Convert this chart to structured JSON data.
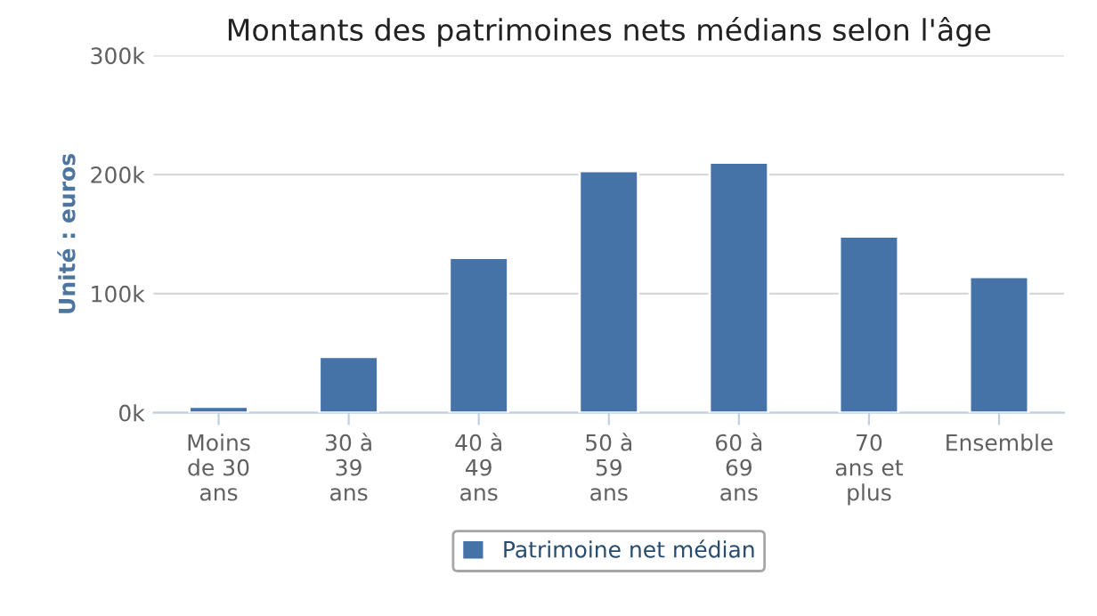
{
  "chart_data": {
    "type": "bar",
    "title": "Montants des patrimoines nets médians selon l'âge",
    "ylabel": "Unité : euros",
    "categories": [
      "Moins\nde 30\nans",
      "30 à\n39\nans",
      "40 à\n49\nans",
      "50 à\n59\nans",
      "60 à\n69\nans",
      "70\nans et\nplus",
      "Ensemble"
    ],
    "series": [
      {
        "name": "Patrimoine net médian",
        "color": "#4572a7",
        "values": [
          5000,
          47000,
          130000,
          203000,
          210000,
          148000,
          114000
        ]
      }
    ],
    "ylim": [
      0,
      300000
    ],
    "yticks": [
      {
        "value": 0,
        "label": "0k"
      },
      {
        "value": 100000,
        "label": "100k"
      },
      {
        "value": 200000,
        "label": "200k"
      },
      {
        "value": 300000,
        "label": "300k"
      }
    ],
    "grid": "y",
    "legend": "bottom"
  }
}
